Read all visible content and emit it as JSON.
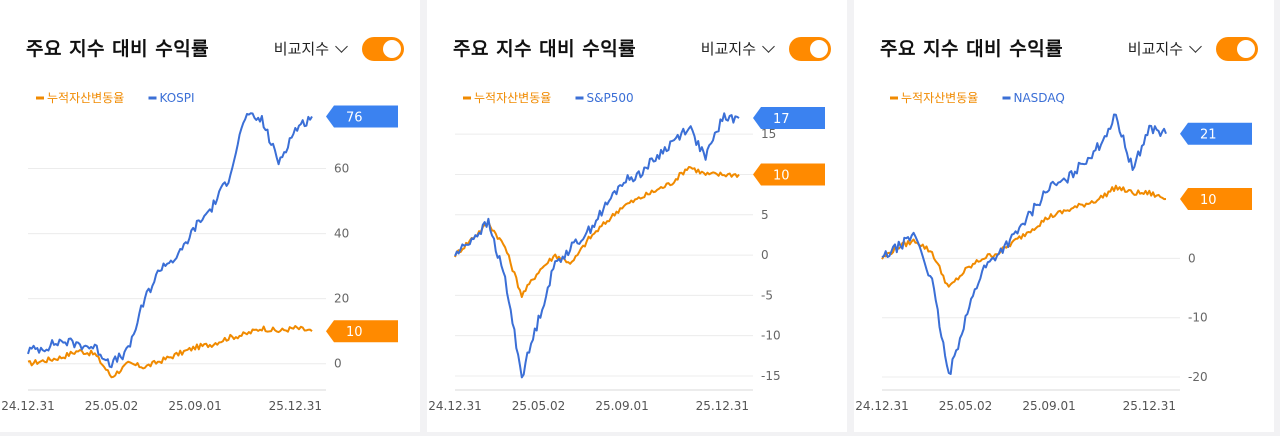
{
  "cards": [
    {
      "title": "주요 지수 대비 수익률",
      "compare_label": "비교지수",
      "toggle_on": true
    },
    {
      "title": "주요 지수 대비 수익률",
      "compare_label": "비교지수",
      "toggle_on": true
    },
    {
      "title": "주요 지수 대비 수익률",
      "compare_label": "비교지수",
      "toggle_on": true
    }
  ],
  "colors": {
    "portfolio": "#f08a00",
    "index": "#3b6fd6",
    "tag_orange": "#ff8a00",
    "tag_blue": "#3b82f0",
    "toggle": "#ff8a00"
  },
  "chart_data": [
    {
      "type": "line",
      "x": [
        "24.12.31",
        "25.01.31",
        "25.02.28",
        "25.03.31",
        "25.04.15",
        "25.05.02",
        "25.05.30",
        "25.06.30",
        "25.07.31",
        "25.08.29",
        "25.09.01",
        "25.09.30",
        "25.10.31",
        "25.11.15",
        "25.11.28",
        "25.12.15",
        "25.12.31",
        "26.01.15"
      ],
      "xticks": [
        "24.12.31",
        "25.05.02",
        "25.09.01",
        "25.12.31"
      ],
      "yticks": [
        0,
        20,
        40,
        60
      ],
      "ylim": [
        -5,
        78
      ],
      "series": [
        {
          "name": "누적자산변동율",
          "color": "orange",
          "values": [
            0,
            1,
            2,
            4,
            3,
            -4,
            0,
            -1,
            1,
            3,
            5,
            6,
            8,
            9,
            11,
            10,
            11,
            10
          ]
        },
        {
          "name": "KOSPI",
          "color": "blue",
          "values": [
            4,
            5,
            7,
            6,
            5,
            0,
            4,
            20,
            30,
            33,
            42,
            48,
            57,
            76,
            75,
            62,
            72,
            76
          ]
        }
      ],
      "end_labels": [
        "76",
        "10"
      ]
    },
    {
      "type": "line",
      "x": [
        "24.12.31",
        "25.01.31",
        "25.02.28",
        "25.03.20",
        "25.04.08",
        "25.04.20",
        "25.05.02",
        "25.05.30",
        "25.06.30",
        "25.07.31",
        "25.08.29",
        "25.09.01",
        "25.09.30",
        "25.10.31",
        "25.11.20",
        "25.12.15",
        "25.12.31",
        "26.01.15"
      ],
      "xticks": [
        "24.12.31",
        "25.05.02",
        "25.09.01",
        "25.12.31"
      ],
      "yticks": [
        15,
        10,
        5,
        0,
        -5,
        -10,
        -15
      ],
      "ylim": [
        -15.5,
        18
      ],
      "series": [
        {
          "name": "누적자산변동율",
          "color": "orange",
          "values": [
            0,
            2,
            4,
            1,
            -5,
            -2,
            0,
            -1,
            2,
            4,
            6,
            7,
            8,
            9,
            11,
            10,
            10,
            10
          ]
        },
        {
          "name": "S&P500",
          "color": "blue",
          "values": [
            0,
            2,
            4,
            -3,
            -15,
            -8,
            -1,
            1,
            3,
            6,
            9,
            10,
            12,
            14,
            16,
            12,
            17,
            17
          ]
        }
      ],
      "end_labels": [
        "17",
        "10"
      ]
    },
    {
      "type": "line",
      "x": [
        "24.12.31",
        "25.01.31",
        "25.02.28",
        "25.03.20",
        "25.04.08",
        "25.04.20",
        "25.05.02",
        "25.05.30",
        "25.06.30",
        "25.07.31",
        "25.08.29",
        "25.09.01",
        "25.09.30",
        "25.10.31",
        "25.11.20",
        "25.12.15",
        "25.12.31",
        "26.01.15"
      ],
      "xticks": [
        "24.12.31",
        "25.05.02",
        "25.09.01",
        "25.12.31"
      ],
      "yticks": [
        0,
        -10,
        -20
      ],
      "ylim": [
        -20.5,
        25
      ],
      "series": [
        {
          "name": "누적자산변동율",
          "color": "orange",
          "values": [
            0,
            2,
            3,
            1,
            -5,
            -2,
            0,
            1,
            3,
            5,
            7,
            8,
            9,
            10,
            12,
            11,
            11,
            10
          ]
        },
        {
          "name": "NASDAQ",
          "color": "blue",
          "values": [
            0,
            2,
            4,
            -4,
            -20,
            -10,
            -2,
            1,
            4,
            8,
            12,
            13,
            16,
            19,
            24,
            15,
            22,
            21
          ]
        }
      ],
      "end_labels": [
        "21",
        "10"
      ]
    }
  ]
}
